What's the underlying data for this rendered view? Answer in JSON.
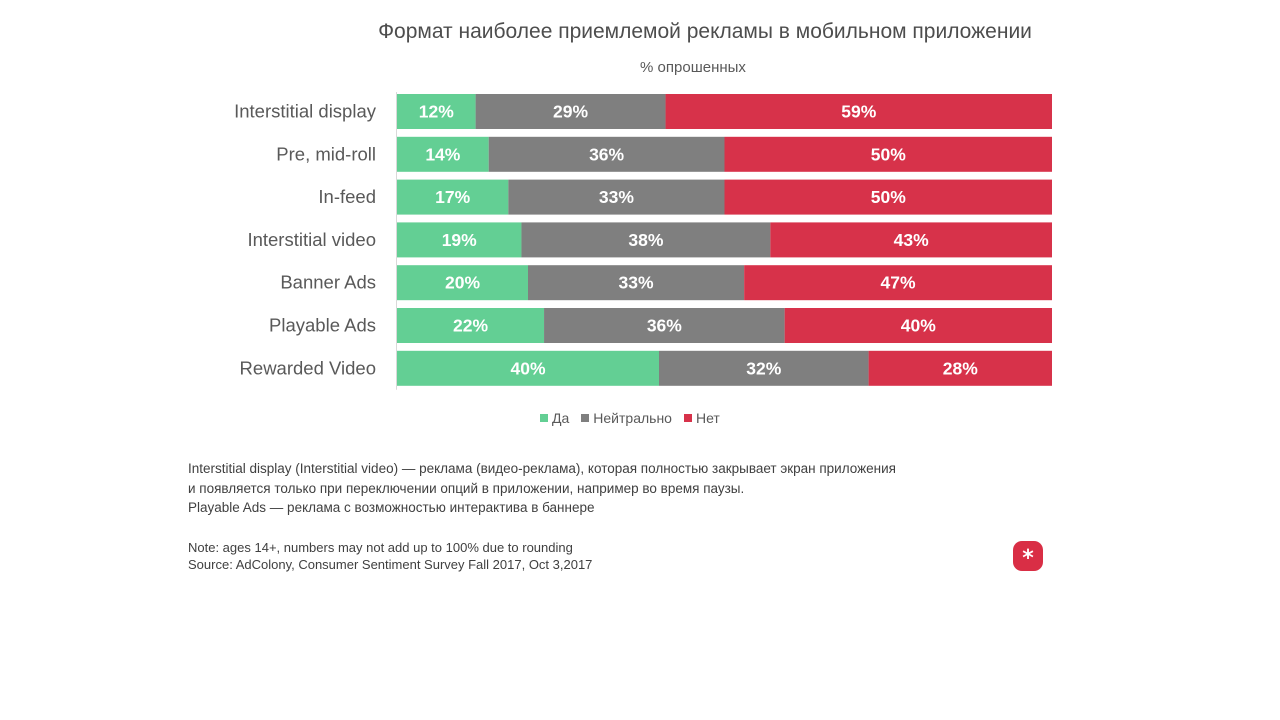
{
  "title": "Формат наиболее приемлемой рекламы в мобильном приложении",
  "subtitle": "% опрошенных",
  "colors": {
    "yes": "#63cf94",
    "neutral": "#7f7f7f",
    "no": "#d7324a"
  },
  "legend": {
    "yes": "Да",
    "neutral": "Нейтрально",
    "no": "Нет"
  },
  "description": {
    "line1": "Interstitial display (Interstitial video) — реклама (видео-реклама), которая полностью закрывает экран приложения",
    "line2": "и появляется только при переключении опций в приложении, например во время паузы.",
    "line3": "Playable Ads —  реклама с возможностью интерактива в баннере"
  },
  "notes": {
    "note": "Note: ages 14+, numbers may not add up to 100% due to rounding",
    "source": "Source: AdColony, Consumer Sentiment Survey Fall 2017, Oct 3,2017"
  },
  "logo": {
    "icon": "asterisk-icon",
    "glyph": "*"
  },
  "chart_data": {
    "type": "bar",
    "orientation": "horizontal",
    "stacked": true,
    "categories": [
      "Interstitial display",
      "Pre, mid-roll",
      "In-feed",
      "Interstitial video",
      "Banner Ads",
      "Playable Ads",
      "Rewarded Video"
    ],
    "series": [
      {
        "name": "Да",
        "values": [
          12,
          14,
          17,
          19,
          20,
          22,
          40
        ],
        "labels": [
          "12%",
          "14%",
          "17%",
          "19%",
          "20%",
          "22%",
          "40%"
        ]
      },
      {
        "name": "Нейтрально",
        "values": [
          29,
          36,
          33,
          38,
          33,
          36,
          32
        ],
        "labels": [
          "29%",
          "36%",
          "33%",
          "38%",
          "33%",
          "36%",
          "32%"
        ]
      },
      {
        "name": "Нет",
        "values": [
          59,
          50,
          50,
          43,
          47,
          40,
          28
        ],
        "labels": [
          "59%",
          "50%",
          "50%",
          "43%",
          "47%",
          "40%",
          "28%"
        ]
      }
    ],
    "title": "Формат наиболее приемлемой рекламы в мобильном приложении",
    "subtitle": "% опрошенных",
    "legend_position": "bottom",
    "grid": false
  }
}
